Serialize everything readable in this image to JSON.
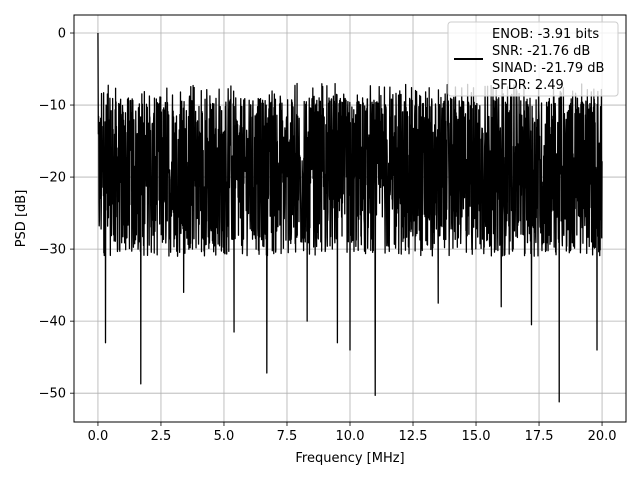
{
  "chart_data": {
    "type": "line",
    "title": "",
    "xlabel": "Frequency [MHz]",
    "ylabel": "PSD [dB]",
    "xlim": [
      -0.95,
      20.95
    ],
    "ylim": [
      -54,
      2.5
    ],
    "x_ticks": [
      0.0,
      2.5,
      5.0,
      7.5,
      10.0,
      12.5,
      15.0,
      17.5,
      20.0
    ],
    "x_tick_labels": [
      "0.0",
      "2.5",
      "5.0",
      "7.5",
      "10.0",
      "12.5",
      "15.0",
      "17.5",
      "20.0"
    ],
    "y_ticks": [
      0,
      -10,
      -20,
      -30,
      -40,
      -50
    ],
    "y_tick_labels": [
      "0",
      "−10",
      "−20",
      "−30",
      "−40",
      "−50"
    ],
    "grid": true,
    "legend_position": "top-right",
    "series": [
      {
        "color": "#000000",
        "x_range": [
          0.0,
          20.0
        ],
        "peak": {
          "x": 0.0,
          "y": 0.0
        },
        "noise_floor_mean_db": -20,
        "upper_envelope_db": -7,
        "lower_envelope_db": -30,
        "deep_nulls": [
          {
            "x": 0.3,
            "y": -43
          },
          {
            "x": 1.7,
            "y": -48.7
          },
          {
            "x": 3.4,
            "y": -36
          },
          {
            "x": 5.4,
            "y": -41.5
          },
          {
            "x": 6.7,
            "y": -47.2
          },
          {
            "x": 8.3,
            "y": -40
          },
          {
            "x": 9.5,
            "y": -43
          },
          {
            "x": 10.0,
            "y": -44
          },
          {
            "x": 11.0,
            "y": -50.3
          },
          {
            "x": 13.5,
            "y": -37.5
          },
          {
            "x": 16.0,
            "y": -38
          },
          {
            "x": 17.2,
            "y": -40.5
          },
          {
            "x": 18.3,
            "y": -51.2
          },
          {
            "x": 19.8,
            "y": -44
          }
        ]
      }
    ],
    "legend": {
      "lines": [
        "ENOB: -3.91 bits",
        "SNR: -21.76 dB",
        "SINAD: -21.79 dB",
        "SFDR: 2.49"
      ]
    }
  }
}
